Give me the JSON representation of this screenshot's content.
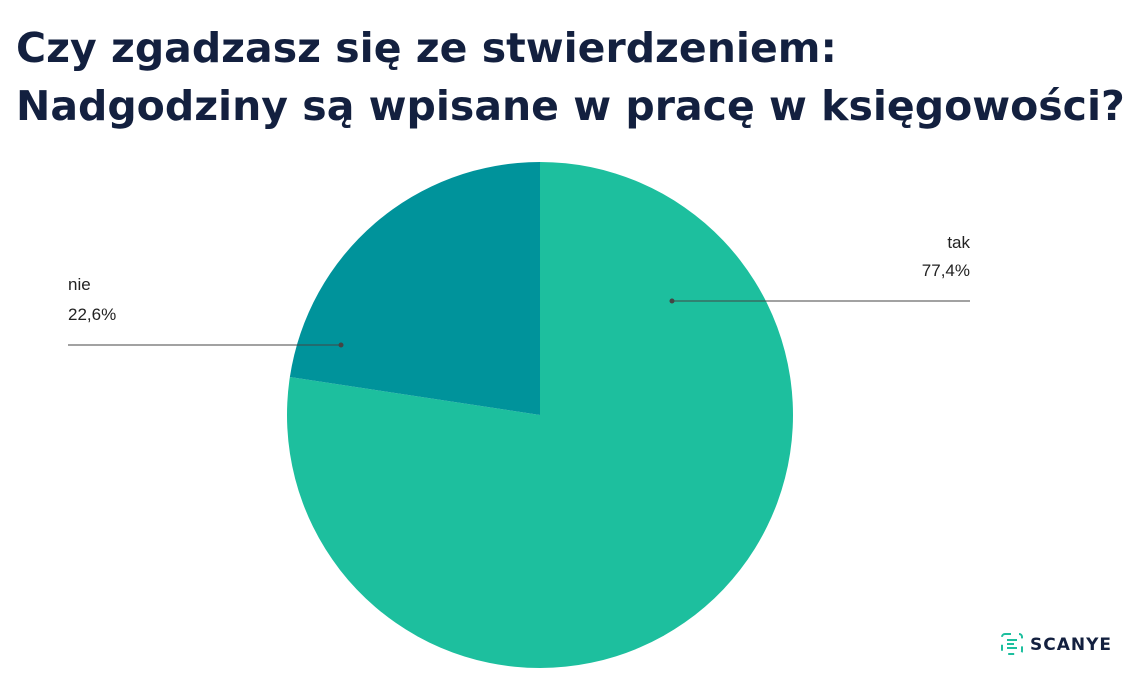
{
  "chart_data": {
    "type": "pie",
    "title": [
      "Czy zgadzasz się ze stwierdzeniem:",
      "Nadgodziny są wpisane w pracę w księgowości?"
    ],
    "categories": [
      "tak",
      "nie"
    ],
    "values": [
      77.4,
      22.6
    ],
    "value_labels": [
      "77,4%",
      "22,6%"
    ],
    "colors": [
      "#1dbf9e",
      "#00939b"
    ]
  },
  "logo": "SCANYE"
}
